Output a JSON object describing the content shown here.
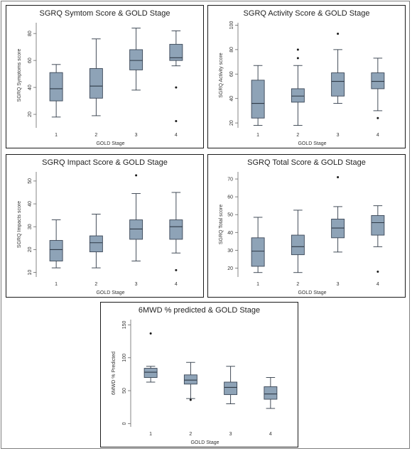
{
  "chart_data": [
    {
      "id": "symptom",
      "type": "box",
      "title": "SGRQ Symtom Score & GOLD Stage",
      "xlabel": "GOLD Stage",
      "ylabel": "SGRQ Symptoms score",
      "categories": [
        "1",
        "2",
        "3",
        "4"
      ],
      "yticks": [
        20,
        40,
        60,
        80
      ],
      "ylim": [
        10,
        88
      ],
      "tick_rotation": -90,
      "boxes": [
        {
          "min": 18,
          "q1": 30,
          "median": 39,
          "q3": 51,
          "max": 57,
          "outliers": []
        },
        {
          "min": 19,
          "q1": 32,
          "median": 41,
          "q3": 54,
          "max": 76,
          "outliers": []
        },
        {
          "min": 38,
          "q1": 53,
          "median": 60,
          "q3": 68,
          "max": 84,
          "outliers": []
        },
        {
          "min": 56,
          "q1": 60,
          "median": 62,
          "q3": 72,
          "max": 82,
          "outliers": [
            40,
            15
          ]
        }
      ]
    },
    {
      "id": "activity",
      "type": "box",
      "title": "SGRQ Activity Score & GOLD Stage",
      "xlabel": "GOLD Stage",
      "ylabel": "SGRQ Activity score",
      "categories": [
        "1",
        "2",
        "3",
        "4"
      ],
      "yticks": [
        20,
        40,
        60,
        80,
        100
      ],
      "ylim": [
        16,
        102
      ],
      "tick_rotation": -90,
      "boxes": [
        {
          "min": 18,
          "q1": 24,
          "median": 36,
          "q3": 55,
          "max": 67,
          "outliers": []
        },
        {
          "min": 18,
          "q1": 37,
          "median": 42,
          "q3": 48,
          "max": 67,
          "outliers": [
            80,
            73
          ]
        },
        {
          "min": 36,
          "q1": 42,
          "median": 54,
          "q3": 61,
          "max": 80,
          "outliers": [
            93
          ]
        },
        {
          "min": 30,
          "q1": 48,
          "median": 54,
          "q3": 61,
          "max": 73,
          "outliers": [
            24
          ]
        }
      ]
    },
    {
      "id": "impact",
      "type": "box",
      "title": "SGRQ Impact Score & GOLD Stage",
      "xlabel": "GOLD Stage",
      "ylabel": "SGRQ Impacts score",
      "categories": [
        "1",
        "2",
        "3",
        "4"
      ],
      "yticks": [
        10,
        20,
        30,
        40,
        50
      ],
      "ylim": [
        8,
        54
      ],
      "tick_rotation": -90,
      "boxes": [
        {
          "min": 12,
          "q1": 15,
          "median": 20,
          "q3": 24,
          "max": 33,
          "outliers": []
        },
        {
          "min": 12,
          "q1": 19,
          "median": 23,
          "q3": 26,
          "max": 35.5,
          "outliers": []
        },
        {
          "min": 15,
          "q1": 24.5,
          "median": 29,
          "q3": 33,
          "max": 44.5,
          "outliers": [
            52.5
          ]
        },
        {
          "min": 18.5,
          "q1": 24.5,
          "median": 30,
          "q3": 33,
          "max": 45,
          "outliers": [
            11
          ]
        }
      ]
    },
    {
      "id": "total",
      "type": "box",
      "title": "SGRQ Total Score & GOLD Stage",
      "xlabel": "GOLD Stage",
      "ylabel": "SGRQ Total score",
      "categories": [
        "1",
        "2",
        "3",
        "4"
      ],
      "yticks": [
        20,
        30,
        40,
        50,
        60,
        70
      ],
      "ylim": [
        15,
        74
      ],
      "tick_rotation": 0,
      "boxes": [
        {
          "min": 17.5,
          "q1": 21,
          "median": 29.5,
          "q3": 37,
          "max": 48.5,
          "outliers": []
        },
        {
          "min": 17.5,
          "q1": 27.5,
          "median": 32,
          "q3": 38.5,
          "max": 52.5,
          "outliers": []
        },
        {
          "min": 29,
          "q1": 37,
          "median": 42.5,
          "q3": 47.5,
          "max": 54.5,
          "outliers": [
            71
          ]
        },
        {
          "min": 32,
          "q1": 38.5,
          "median": 45.5,
          "q3": 49.5,
          "max": 55,
          "outliers": [
            18
          ]
        }
      ]
    },
    {
      "id": "sixmwd",
      "type": "box",
      "title": "6MWD % predicted & GOLD Stage",
      "xlabel": "GOLD Stage",
      "ylabel": "6MWD % Predicted",
      "categories": [
        "1",
        "2",
        "3",
        "4"
      ],
      "yticks": [
        0,
        50,
        100,
        150
      ],
      "ylim": [
        -5,
        158
      ],
      "tick_rotation": -90,
      "boxes": [
        {
          "min": 63,
          "q1": 70,
          "median": 78,
          "q3": 84,
          "max": 87,
          "outliers": [
            137
          ]
        },
        {
          "min": 38,
          "q1": 60,
          "median": 66,
          "q3": 74,
          "max": 93,
          "outliers": [
            36
          ]
        },
        {
          "min": 30,
          "q1": 44,
          "median": 55,
          "q3": 63,
          "max": 87,
          "outliers": []
        },
        {
          "min": 23,
          "q1": 37,
          "median": 45,
          "q3": 56,
          "max": 70,
          "outliers": []
        }
      ]
    }
  ],
  "style": {
    "box_fill": "#8ea3b7",
    "box_stroke": "#3a4656",
    "line_color": "#2f3a47"
  }
}
